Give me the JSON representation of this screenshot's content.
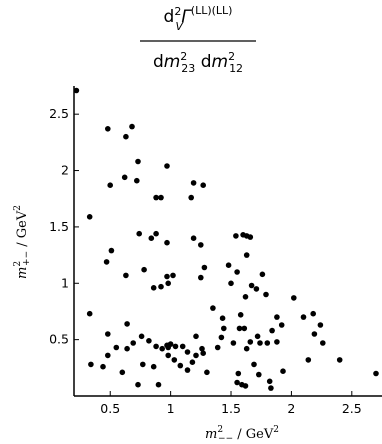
{
  "chart_data": {
    "type": "scatter",
    "title": {
      "numerator": "d²Γ_V^{(LL)(LL)}",
      "denominator": "dm²₂₃ dm²₁₂"
    },
    "xlabel": "m²₋₋ / GeV²",
    "ylabel": "m²₊₋ / GeV²",
    "xlim": [
      0.2,
      2.75
    ],
    "ylim": [
      0.0,
      2.75
    ],
    "x_ticks": [
      0.5,
      1.0,
      1.5,
      2.0,
      2.5
    ],
    "x_tick_labels": [
      "0.5",
      "1",
      "1.5",
      "2",
      "2.5"
    ],
    "y_ticks": [
      0.5,
      1.0,
      1.5,
      2.0,
      2.5
    ],
    "y_tick_labels": [
      "0.5",
      "1",
      "1.5",
      "2",
      "2.5"
    ],
    "grid": false,
    "marker_color": "#000000",
    "points": [
      [
        0.22,
        2.71
      ],
      [
        0.48,
        2.37
      ],
      [
        0.63,
        2.3
      ],
      [
        0.68,
        2.39
      ],
      [
        0.73,
        2.08
      ],
      [
        0.5,
        1.87
      ],
      [
        0.62,
        1.94
      ],
      [
        0.72,
        1.91
      ],
      [
        0.97,
        2.04
      ],
      [
        1.27,
        1.87
      ],
      [
        0.33,
        1.59
      ],
      [
        0.88,
        1.76
      ],
      [
        0.92,
        1.76
      ],
      [
        1.17,
        1.76
      ],
      [
        1.19,
        1.89
      ],
      [
        0.74,
        1.44
      ],
      [
        0.84,
        1.4
      ],
      [
        0.88,
        1.44
      ],
      [
        0.97,
        1.36
      ],
      [
        0.51,
        1.29
      ],
      [
        1.19,
        1.4
      ],
      [
        1.25,
        1.34
      ],
      [
        0.47,
        1.19
      ],
      [
        0.63,
        1.07
      ],
      [
        0.78,
        1.12
      ],
      [
        0.97,
        1.06
      ],
      [
        0.98,
        1.0
      ],
      [
        0.86,
        0.96
      ],
      [
        0.92,
        0.97
      ],
      [
        1.02,
        1.07
      ],
      [
        1.25,
        1.05
      ],
      [
        1.28,
        1.14
      ],
      [
        1.54,
        1.42
      ],
      [
        1.6,
        1.43
      ],
      [
        1.63,
        1.42
      ],
      [
        1.66,
        1.41
      ],
      [
        1.48,
        1.16
      ],
      [
        1.55,
        1.1
      ],
      [
        1.63,
        1.25
      ],
      [
        1.67,
        0.98
      ],
      [
        1.71,
        0.95
      ],
      [
        1.79,
        0.9
      ],
      [
        1.76,
        1.08
      ],
      [
        1.5,
        1.0
      ],
      [
        1.62,
        0.88
      ],
      [
        1.35,
        0.78
      ],
      [
        1.43,
        0.69
      ],
      [
        1.58,
        0.72
      ],
      [
        2.02,
        0.87
      ],
      [
        1.61,
        0.6
      ],
      [
        1.72,
        0.53
      ],
      [
        1.84,
        0.58
      ],
      [
        1.88,
        0.7
      ],
      [
        1.92,
        0.63
      ],
      [
        2.1,
        0.7
      ],
      [
        2.18,
        0.73
      ],
      [
        2.19,
        0.55
      ],
      [
        2.24,
        0.63
      ],
      [
        2.26,
        0.47
      ],
      [
        0.33,
        0.73
      ],
      [
        0.64,
        0.64
      ],
      [
        0.48,
        0.55
      ],
      [
        0.34,
        0.28
      ],
      [
        0.44,
        0.26
      ],
      [
        0.48,
        0.36
      ],
      [
        0.64,
        0.42
      ],
      [
        0.69,
        0.47
      ],
      [
        0.76,
        0.53
      ],
      [
        0.82,
        0.49
      ],
      [
        0.88,
        0.44
      ],
      [
        0.93,
        0.42
      ],
      [
        0.98,
        0.43
      ],
      [
        0.98,
        0.36
      ],
      [
        1.03,
        0.32
      ],
      [
        1.04,
        0.44
      ],
      [
        0.97,
        0.45
      ],
      [
        1.0,
        0.46
      ],
      [
        1.1,
        0.44
      ],
      [
        1.14,
        0.39
      ],
      [
        1.18,
        0.3
      ],
      [
        1.21,
        0.53
      ],
      [
        1.21,
        0.36
      ],
      [
        1.26,
        0.42
      ],
      [
        1.3,
        0.21
      ],
      [
        1.39,
        0.43
      ],
      [
        1.44,
        0.6
      ],
      [
        1.52,
        0.47
      ],
      [
        1.57,
        0.6
      ],
      [
        1.63,
        0.42
      ],
      [
        1.66,
        0.48
      ],
      [
        1.74,
        0.47
      ],
      [
        1.8,
        0.47
      ],
      [
        1.88,
        0.48
      ],
      [
        1.93,
        0.22
      ],
      [
        2.14,
        0.32
      ],
      [
        2.4,
        0.32
      ],
      [
        2.7,
        0.2
      ],
      [
        1.55,
        0.12
      ],
      [
        1.59,
        0.1
      ],
      [
        1.62,
        0.09
      ],
      [
        1.73,
        0.19
      ],
      [
        1.82,
        0.13
      ],
      [
        1.83,
        0.07
      ],
      [
        0.73,
        0.1
      ],
      [
        0.86,
        0.26
      ],
      [
        0.9,
        0.1
      ],
      [
        1.08,
        0.27
      ],
      [
        1.14,
        0.23
      ],
      [
        1.27,
        0.38
      ],
      [
        1.42,
        0.52
      ],
      [
        1.56,
        0.2
      ],
      [
        1.69,
        0.28
      ],
      [
        0.77,
        0.28
      ],
      [
        0.6,
        0.21
      ],
      [
        0.55,
        0.43
      ]
    ]
  }
}
